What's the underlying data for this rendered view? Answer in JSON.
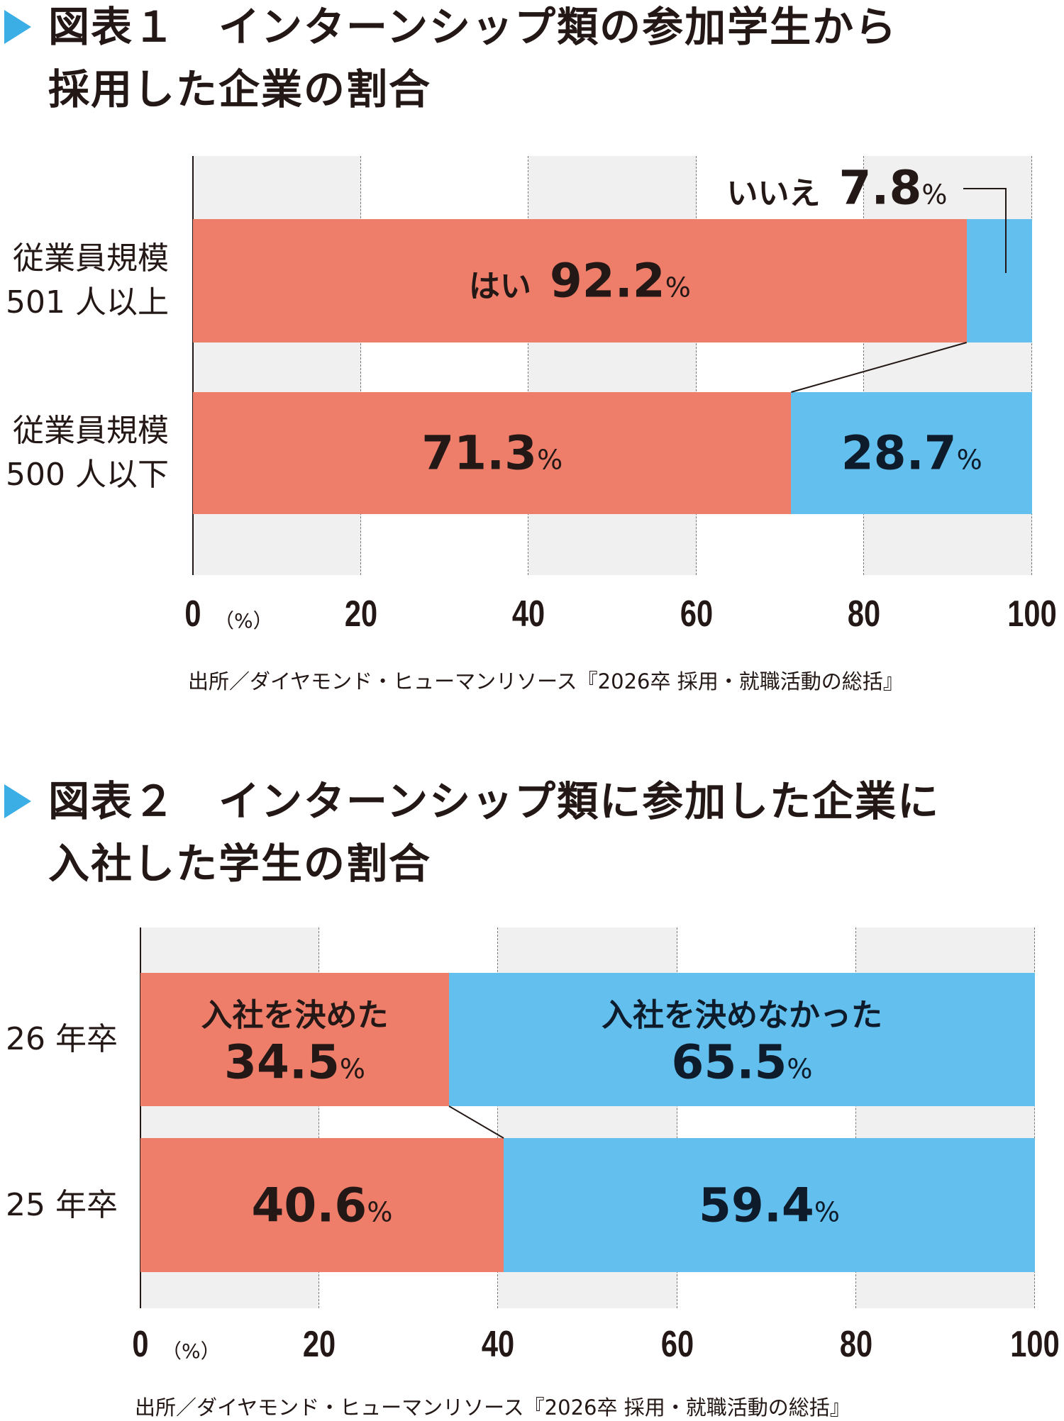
{
  "colors": {
    "yes": "#EE7D6A",
    "no": "#63C0EE",
    "band": "#F0F0F0",
    "text": "#231815",
    "accent": "#3BAEE6"
  },
  "chart_data": [
    {
      "type": "bar",
      "stacked": true,
      "orientation": "horizontal",
      "title_lines": [
        "図表１　インターンシップ類の参加学生から",
        "採用した企業の割合"
      ],
      "categories": [
        "従業員規模\n501人以上",
        "従業員規模\n500人以下"
      ],
      "category_lines": [
        [
          "従業員規模",
          "501 人以上"
        ],
        [
          "従業員規模",
          "500 人以下"
        ]
      ],
      "series": [
        {
          "name": "はい",
          "values": [
            92.2,
            71.3
          ]
        },
        {
          "name": "いいえ",
          "values": [
            7.8,
            28.7
          ]
        }
      ],
      "labels": {
        "yes_row1": "はい",
        "no_row1": "いいえ",
        "pct": "%"
      },
      "xlim": [
        0,
        100
      ],
      "xticks": [
        "0",
        "20",
        "40",
        "60",
        "80",
        "100"
      ],
      "xunit": "（%）",
      "grid": true,
      "source": "出所／ダイヤモンド・ヒューマンリソース『2026卒 採用・就職活動の総括』"
    },
    {
      "type": "bar",
      "stacked": true,
      "orientation": "horizontal",
      "title_lines": [
        "図表２　インターンシップ類に参加した企業に",
        "入社した学生の割合"
      ],
      "categories": [
        "26年卒",
        "25年卒"
      ],
      "category_lines": [
        [
          "26 年卒"
        ],
        [
          "25 年卒"
        ]
      ],
      "series": [
        {
          "name": "入社を決めた",
          "values": [
            34.5,
            40.6
          ]
        },
        {
          "name": "入社を決めなかった",
          "values": [
            65.5,
            59.4
          ]
        }
      ],
      "labels": {
        "pct": "%"
      },
      "xlim": [
        0,
        100
      ],
      "xticks": [
        "0",
        "20",
        "40",
        "60",
        "80",
        "100"
      ],
      "xunit": "（%）",
      "grid": true,
      "source": "出所／ダイヤモンド・ヒューマンリソース『2026卒 採用・就職活動の総括』"
    }
  ]
}
